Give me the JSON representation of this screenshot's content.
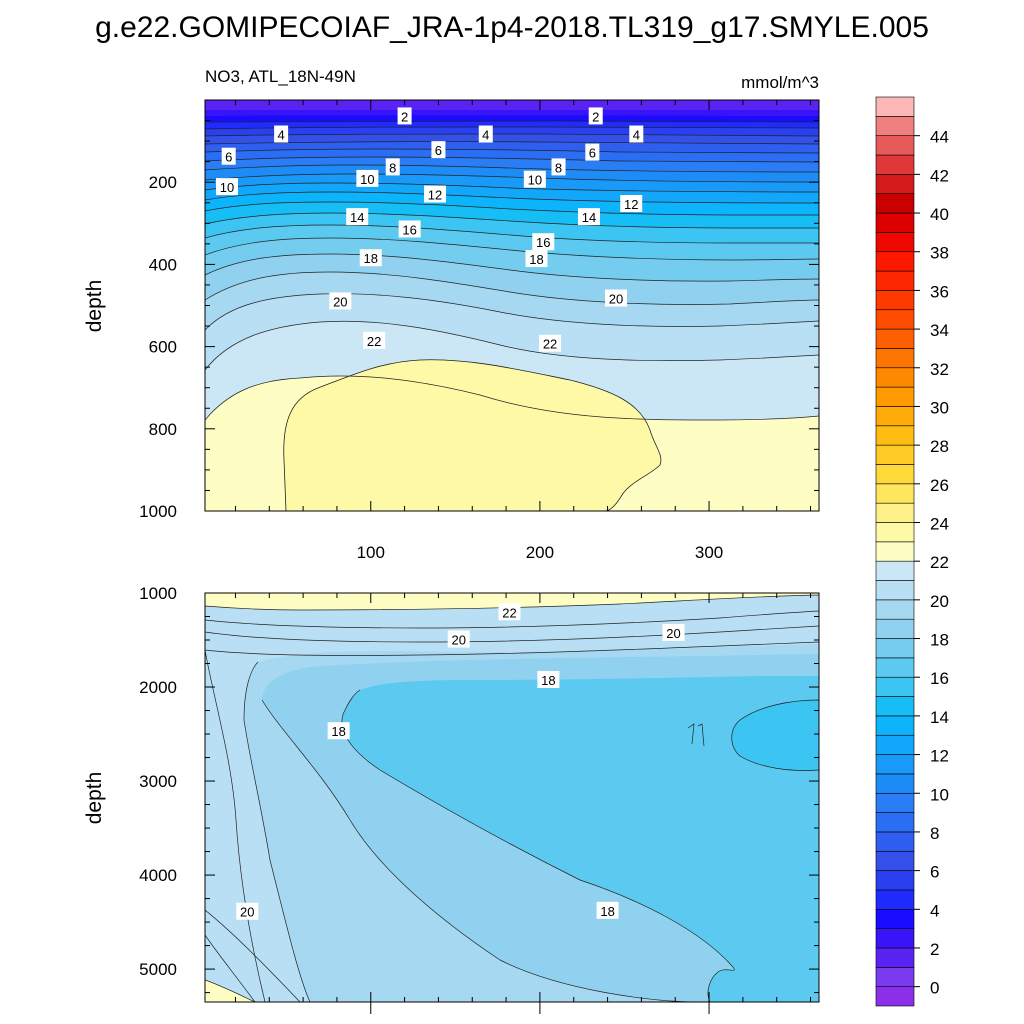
{
  "title": "g.e22.GOMIPECOIAF_JRA-1p4-2018.TL319_g17.SMYLE.005",
  "chart_data": [
    {
      "type": "heatmap",
      "panel": "upper",
      "left_title": "NO3, ATL_18N-49N",
      "right_title": "mmol/m^3",
      "ylabel": "depth",
      "xlabel": "",
      "xlim": [
        2,
        365
      ],
      "ylim": [
        1000,
        0
      ],
      "xticks": [
        100,
        200,
        300
      ],
      "xtick_labels": [
        "100",
        "200",
        "300"
      ],
      "yticks": [
        200,
        400,
        600,
        800,
        1000
      ],
      "ytick_labels": [
        "200",
        "400",
        "600",
        "800",
        "1000"
      ],
      "contour_labels": [
        {
          "text": "2",
          "x": 120,
          "y": 40
        },
        {
          "text": "2",
          "x": 233,
          "y": 40
        },
        {
          "text": "4",
          "x": 47,
          "y": 84
        },
        {
          "text": "4",
          "x": 168,
          "y": 84
        },
        {
          "text": "4",
          "x": 257,
          "y": 84
        },
        {
          "text": "6",
          "x": 16,
          "y": 138
        },
        {
          "text": "6",
          "x": 140,
          "y": 122
        },
        {
          "text": "6",
          "x": 231,
          "y": 128
        },
        {
          "text": "8",
          "x": 113,
          "y": 164
        },
        {
          "text": "8",
          "x": 211,
          "y": 164
        },
        {
          "text": "10",
          "x": 15,
          "y": 212
        },
        {
          "text": "10",
          "x": 98,
          "y": 192
        },
        {
          "text": "10",
          "x": 197,
          "y": 194
        },
        {
          "text": "12",
          "x": 138,
          "y": 230
        },
        {
          "text": "12",
          "x": 254,
          "y": 253
        },
        {
          "text": "14",
          "x": 92,
          "y": 285
        },
        {
          "text": "14",
          "x": 229,
          "y": 285
        },
        {
          "text": "16",
          "x": 123,
          "y": 315
        },
        {
          "text": "16",
          "x": 202,
          "y": 346
        },
        {
          "text": "18",
          "x": 100,
          "y": 385
        },
        {
          "text": "18",
          "x": 198,
          "y": 387
        },
        {
          "text": "20",
          "x": 82,
          "y": 490
        },
        {
          "text": "20",
          "x": 245,
          "y": 483
        },
        {
          "text": "22",
          "x": 102,
          "y": 586
        },
        {
          "text": "22",
          "x": 206,
          "y": 593
        }
      ]
    },
    {
      "type": "heatmap",
      "panel": "lower",
      "ylabel": "depth",
      "xlabel": "",
      "xlim": [
        2,
        365
      ],
      "ylim": [
        5350,
        1000
      ],
      "xticks": [
        100,
        200,
        300
      ],
      "xtick_labels": [],
      "yticks": [
        1000,
        2000,
        3000,
        4000,
        5000
      ],
      "ytick_labels": [
        "1000",
        "2000",
        "3000",
        "4000",
        "5000"
      ],
      "contour_labels": [
        {
          "text": "22",
          "x": 182,
          "y": 1205
        },
        {
          "text": "20",
          "x": 152,
          "y": 1495
        },
        {
          "text": "20",
          "x": 279,
          "y": 1425
        },
        {
          "text": "18",
          "x": 205,
          "y": 1925
        },
        {
          "text": "18",
          "x": 81,
          "y": 2470
        },
        {
          "text": "18",
          "x": 240,
          "y": 4380
        },
        {
          "text": "20",
          "x": 27,
          "y": 4390
        }
      ]
    }
  ],
  "colorbar": {
    "levels": [
      -1,
      0,
      1,
      2,
      3,
      4,
      5,
      6,
      7,
      8,
      9,
      10,
      11,
      12,
      13,
      14,
      15,
      16,
      17,
      18,
      19,
      20,
      21,
      22,
      23,
      24,
      25,
      26,
      27,
      28,
      29,
      30,
      31,
      32,
      33,
      34,
      35,
      36,
      37,
      38,
      39,
      40,
      41,
      42,
      43,
      44,
      45,
      46
    ],
    "colors": [
      "#8b30e8",
      "#7a3bf0",
      "#5b22f4",
      "#3a14f8",
      "#1a0cff",
      "#1f2bff",
      "#2a40f0",
      "#3350e8",
      "#2e5ff0",
      "#2a6ef5",
      "#2a7df5",
      "#1e8cf7",
      "#1a9af8",
      "#12a7fa",
      "#0cb4fb",
      "#16bef5",
      "#3cc4f2",
      "#5ccaf0",
      "#74cdee",
      "#90d1ef",
      "#a6d8f1",
      "#b8dff3",
      "#cbe7f6",
      "#fefec4",
      "#fef9a6",
      "#fef088",
      "#fee65e",
      "#fed93a",
      "#fecb24",
      "#febc12",
      "#feaa08",
      "#fe9a00",
      "#fe8800",
      "#fe7400",
      "#fe6000",
      "#fe4c00",
      "#fe3a00",
      "#fe2800",
      "#fe1800",
      "#f00800",
      "#dc0000",
      "#c80000",
      "#d41a1a",
      "#e03838",
      "#e65a5a",
      "#f08080",
      "#fbb6b6"
    ],
    "tick_labels": [
      "0",
      "2",
      "4",
      "6",
      "8",
      "10",
      "12",
      "14",
      "16",
      "18",
      "20",
      "22",
      "24",
      "26",
      "28",
      "30",
      "32",
      "34",
      "36",
      "38",
      "40",
      "42",
      "44"
    ]
  }
}
